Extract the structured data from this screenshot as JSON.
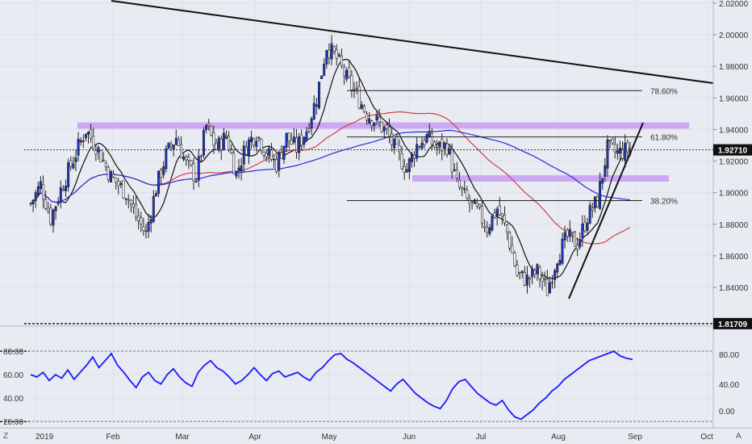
{
  "chart_data": [
    {
      "type": "candlestick",
      "title": "",
      "ylim": [
        1.816,
        2.022
      ],
      "y_ticks": [
        "2.02000",
        "2.00000",
        "1.98000",
        "1.96000",
        "1.94000",
        "1.92000",
        "1.90000",
        "1.88000",
        "1.86000",
        "1.84000"
      ],
      "x_ticks": [
        "2019",
        "Feb",
        "Mar",
        "Apr",
        "May",
        "Jun",
        "Jul",
        "Aug",
        "Sep",
        "Oct"
      ],
      "last_price": {
        "label": "1.92710",
        "value": 1.9271
      },
      "low_line": {
        "label": "1.81709",
        "value": 1.81709
      },
      "fib_levels": [
        {
          "label": "78.60%",
          "value": 1.9646
        },
        {
          "label": "61.80%",
          "value": 1.9353
        },
        {
          "label": "38.20%",
          "value": 1.895
        }
      ],
      "zones": [
        {
          "name": "upper-zone",
          "low": 1.9405,
          "high": 1.9445
        },
        {
          "name": "lower-zone",
          "low": 1.907,
          "high": 1.911
        }
      ],
      "candle_close_path": [
        [
          0,
          1.893
        ],
        [
          4,
          1.905
        ],
        [
          8,
          1.884
        ],
        [
          12,
          1.902
        ],
        [
          18,
          1.925
        ],
        [
          22,
          1.94
        ],
        [
          26,
          1.93
        ],
        [
          32,
          1.91
        ],
        [
          38,
          1.9
        ],
        [
          42,
          1.885
        ],
        [
          46,
          1.874
        ],
        [
          50,
          1.903
        ],
        [
          54,
          1.924
        ],
        [
          58,
          1.935
        ],
        [
          62,
          1.918
        ],
        [
          66,
          1.91
        ],
        [
          70,
          1.942
        ],
        [
          74,
          1.928
        ],
        [
          78,
          1.936
        ],
        [
          82,
          1.912
        ],
        [
          86,
          1.93
        ],
        [
          90,
          1.938
        ],
        [
          94,
          1.925
        ],
        [
          98,
          1.918
        ],
        [
          102,
          1.935
        ],
        [
          106,
          1.928
        ],
        [
          110,
          1.94
        ],
        [
          114,
          1.96
        ],
        [
          118,
          1.993
        ],
        [
          122,
          1.985
        ],
        [
          126,
          1.972
        ],
        [
          130,
          1.962
        ],
        [
          134,
          1.95
        ],
        [
          138,
          1.945
        ],
        [
          142,
          1.938
        ],
        [
          146,
          1.925
        ],
        [
          150,
          1.915
        ],
        [
          154,
          1.93
        ],
        [
          158,
          1.935
        ],
        [
          162,
          1.928
        ],
        [
          166,
          1.93
        ],
        [
          170,
          1.905
        ],
        [
          174,
          1.895
        ],
        [
          178,
          1.888
        ],
        [
          182,
          1.878
        ],
        [
          186,
          1.89
        ],
        [
          190,
          1.875
        ],
        [
          194,
          1.848
        ],
        [
          198,
          1.845
        ],
        [
          202,
          1.85
        ],
        [
          206,
          1.838
        ],
        [
          210,
          1.86
        ],
        [
          214,
          1.872
        ],
        [
          218,
          1.868
        ],
        [
          222,
          1.885
        ],
        [
          226,
          1.895
        ],
        [
          230,
          1.928
        ],
        [
          234,
          1.925
        ],
        [
          238,
          1.927
        ]
      ],
      "rsi": {
        "ylim": [
          16,
          100
        ],
        "left_ticks": [
          "80.00",
          "60.00",
          "40.00",
          "20.00"
        ],
        "right_ticks": [
          "80.00",
          "40.00",
          "0.00"
        ],
        "values": [
          60,
          58,
          62,
          55,
          60,
          57,
          64,
          56,
          62,
          68,
          75,
          66,
          72,
          78,
          68,
          62,
          55,
          49,
          58,
          62,
          55,
          52,
          60,
          65,
          58,
          53,
          50,
          62,
          68,
          72,
          66,
          63,
          58,
          52,
          55,
          60,
          66,
          60,
          55,
          61,
          63,
          58,
          60,
          62,
          58,
          55,
          62,
          66,
          72,
          77,
          78,
          73,
          70,
          66,
          62,
          58,
          54,
          50,
          46,
          52,
          56,
          50,
          44,
          40,
          36,
          33,
          31,
          38,
          48,
          54,
          56,
          50,
          44,
          40,
          36,
          34,
          38,
          30,
          24,
          22,
          26,
          30,
          36,
          40,
          46,
          50,
          56,
          60,
          64,
          68,
          72,
          74,
          76,
          78,
          80,
          76,
          74,
          73
        ]
      }
    }
  ],
  "toolbar": {
    "left_button": "Z",
    "right_button": "A"
  }
}
